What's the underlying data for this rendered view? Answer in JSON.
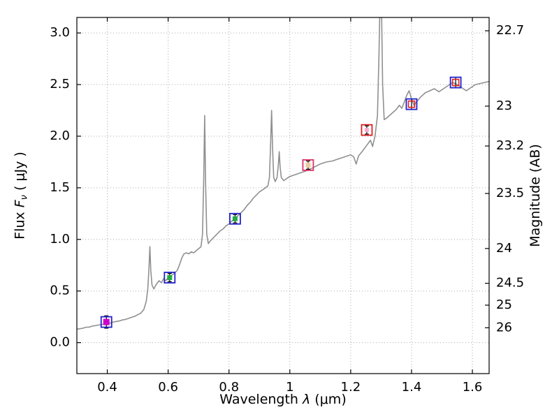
{
  "figure": {
    "xlabel": {
      "pre": "Wavelength  ",
      "sym": "λ",
      "post": " (μm)"
    },
    "ylabel_left": {
      "pre": "Flux  ",
      "sym": "F",
      "sub": "ν",
      "post": "  ( μJy )"
    },
    "ylabel_right": "Magnitude (AB)"
  },
  "chart_data": {
    "type": "line",
    "title": "",
    "xlabel": "Wavelength λ (μm)",
    "ylabel_left": "Flux Fν ( μJy )",
    "ylabel_right": "Magnitude (AB)",
    "xlim": [
      0.3,
      1.655
    ],
    "ylim": [
      -0.3,
      3.15
    ],
    "grid": true,
    "grid_color": "#aaaaaa",
    "frame_color": "#000000",
    "x_ticks": [
      {
        "v": 0.4,
        "label": "0.4"
      },
      {
        "v": 0.6,
        "label": "0.6"
      },
      {
        "v": 0.8,
        "label": "0.8"
      },
      {
        "v": 1.0,
        "label": "1"
      },
      {
        "v": 1.2,
        "label": "1.2"
      },
      {
        "v": 1.4,
        "label": "1.4"
      },
      {
        "v": 1.6,
        "label": "1.6"
      }
    ],
    "y_ticks_left": [
      {
        "v": 0.0,
        "label": "0.0"
      },
      {
        "v": 0.5,
        "label": "0.5"
      },
      {
        "v": 1.0,
        "label": "1.0"
      },
      {
        "v": 1.5,
        "label": "1.5"
      },
      {
        "v": 2.0,
        "label": "2.0"
      },
      {
        "v": 2.5,
        "label": "2.5"
      },
      {
        "v": 3.0,
        "label": "3.0"
      }
    ],
    "y_ticks_right": [
      {
        "v": 3.021,
        "label": "22.7"
      },
      {
        "v": 2.291,
        "label": "23"
      },
      {
        "v": 1.905,
        "label": "23.2"
      },
      {
        "v": 1.445,
        "label": "23.5"
      },
      {
        "v": 0.912,
        "label": "24"
      },
      {
        "v": 0.575,
        "label": "24.5"
      },
      {
        "v": 0.363,
        "label": "25"
      },
      {
        "v": 0.144,
        "label": "26"
      }
    ],
    "spectrum": {
      "name": "model-spectrum",
      "color": "#909090",
      "width": 1.6,
      "points": [
        [
          0.3,
          0.13
        ],
        [
          0.31,
          0.135
        ],
        [
          0.32,
          0.14
        ],
        [
          0.33,
          0.15
        ],
        [
          0.34,
          0.15
        ],
        [
          0.35,
          0.16
        ],
        [
          0.36,
          0.165
        ],
        [
          0.37,
          0.17
        ],
        [
          0.38,
          0.175
        ],
        [
          0.39,
          0.18
        ],
        [
          0.4,
          0.185
        ],
        [
          0.41,
          0.19
        ],
        [
          0.42,
          0.2
        ],
        [
          0.43,
          0.205
        ],
        [
          0.44,
          0.21
        ],
        [
          0.45,
          0.22
        ],
        [
          0.46,
          0.225
        ],
        [
          0.47,
          0.235
        ],
        [
          0.48,
          0.245
        ],
        [
          0.49,
          0.255
        ],
        [
          0.5,
          0.27
        ],
        [
          0.51,
          0.285
        ],
        [
          0.52,
          0.32
        ],
        [
          0.528,
          0.4
        ],
        [
          0.533,
          0.52
        ],
        [
          0.537,
          0.72
        ],
        [
          0.54,
          0.93
        ],
        [
          0.543,
          0.7
        ],
        [
          0.547,
          0.56
        ],
        [
          0.553,
          0.52
        ],
        [
          0.56,
          0.56
        ],
        [
          0.57,
          0.6
        ],
        [
          0.578,
          0.58
        ],
        [
          0.585,
          0.62
        ],
        [
          0.592,
          0.6
        ],
        [
          0.6,
          0.63
        ],
        [
          0.61,
          0.65
        ],
        [
          0.62,
          0.67
        ],
        [
          0.63,
          0.7
        ],
        [
          0.638,
          0.76
        ],
        [
          0.645,
          0.82
        ],
        [
          0.652,
          0.86
        ],
        [
          0.66,
          0.87
        ],
        [
          0.668,
          0.86
        ],
        [
          0.676,
          0.88
        ],
        [
          0.684,
          0.87
        ],
        [
          0.692,
          0.89
        ],
        [
          0.7,
          0.91
        ],
        [
          0.708,
          0.93
        ],
        [
          0.713,
          1.05
        ],
        [
          0.717,
          1.6
        ],
        [
          0.72,
          2.2
        ],
        [
          0.723,
          1.55
        ],
        [
          0.727,
          1.05
        ],
        [
          0.732,
          0.96
        ],
        [
          0.74,
          0.99
        ],
        [
          0.75,
          1.02
        ],
        [
          0.76,
          1.05
        ],
        [
          0.77,
          1.08
        ],
        [
          0.78,
          1.1
        ],
        [
          0.79,
          1.13
        ],
        [
          0.8,
          1.15
        ],
        [
          0.81,
          1.18
        ],
        [
          0.82,
          1.2
        ],
        [
          0.83,
          1.23
        ],
        [
          0.84,
          1.26
        ],
        [
          0.85,
          1.29
        ],
        [
          0.86,
          1.33
        ],
        [
          0.87,
          1.36
        ],
        [
          0.88,
          1.4
        ],
        [
          0.89,
          1.43
        ],
        [
          0.9,
          1.46
        ],
        [
          0.91,
          1.48
        ],
        [
          0.92,
          1.5
        ],
        [
          0.928,
          1.52
        ],
        [
          0.933,
          1.6
        ],
        [
          0.937,
          1.95
        ],
        [
          0.94,
          2.25
        ],
        [
          0.943,
          1.9
        ],
        [
          0.947,
          1.6
        ],
        [
          0.952,
          1.56
        ],
        [
          0.958,
          1.6
        ],
        [
          0.962,
          1.72
        ],
        [
          0.965,
          1.85
        ],
        [
          0.968,
          1.7
        ],
        [
          0.972,
          1.6
        ],
        [
          0.98,
          1.57
        ],
        [
          0.99,
          1.59
        ],
        [
          1.0,
          1.61
        ],
        [
          1.02,
          1.63
        ],
        [
          1.04,
          1.65
        ],
        [
          1.06,
          1.67
        ],
        [
          1.08,
          1.7
        ],
        [
          1.1,
          1.73
        ],
        [
          1.12,
          1.75
        ],
        [
          1.14,
          1.76
        ],
        [
          1.16,
          1.78
        ],
        [
          1.18,
          1.8
        ],
        [
          1.2,
          1.82
        ],
        [
          1.21,
          1.8
        ],
        [
          1.218,
          1.73
        ],
        [
          1.226,
          1.81
        ],
        [
          1.24,
          1.86
        ],
        [
          1.255,
          1.92
        ],
        [
          1.265,
          1.96
        ],
        [
          1.272,
          1.9
        ],
        [
          1.28,
          2.0
        ],
        [
          1.288,
          2.2
        ],
        [
          1.293,
          2.8
        ],
        [
          1.297,
          3.4
        ],
        [
          1.301,
          3.3
        ],
        [
          1.305,
          2.5
        ],
        [
          1.31,
          2.16
        ],
        [
          1.32,
          2.18
        ],
        [
          1.335,
          2.22
        ],
        [
          1.35,
          2.26
        ],
        [
          1.36,
          2.3
        ],
        [
          1.368,
          2.27
        ],
        [
          1.376,
          2.33
        ],
        [
          1.385,
          2.4
        ],
        [
          1.392,
          2.44
        ],
        [
          1.4,
          2.36
        ],
        [
          1.408,
          2.3
        ],
        [
          1.416,
          2.33
        ],
        [
          1.43,
          2.38
        ],
        [
          1.445,
          2.42
        ],
        [
          1.46,
          2.44
        ],
        [
          1.475,
          2.46
        ],
        [
          1.49,
          2.43
        ],
        [
          1.505,
          2.46
        ],
        [
          1.52,
          2.49
        ],
        [
          1.535,
          2.52
        ],
        [
          1.55,
          2.5
        ],
        [
          1.565,
          2.47
        ],
        [
          1.58,
          2.44
        ],
        [
          1.595,
          2.47
        ],
        [
          1.61,
          2.5
        ],
        [
          1.625,
          2.51
        ],
        [
          1.64,
          2.52
        ],
        [
          1.655,
          2.53
        ]
      ]
    },
    "photometry": [
      {
        "x": 0.397,
        "y": 0.2,
        "err": 0.06,
        "outer": {
          "color": "#2222cc",
          "size": 15
        },
        "inner": {
          "color": "#cc00cc",
          "size": 9,
          "fill": true
        }
      },
      {
        "x": 0.605,
        "y": 0.63,
        "err": 0.04,
        "outer": {
          "color": "#2222cc",
          "size": 15
        },
        "inner": {
          "color": "#22aa44",
          "size": 7,
          "fill": true
        }
      },
      {
        "x": 0.82,
        "y": 1.2,
        "err": 0.04,
        "outer": {
          "color": "#2222cc",
          "size": 15
        },
        "inner": {
          "color": "#22aa44",
          "size": 7,
          "fill": true
        }
      },
      {
        "x": 1.06,
        "y": 1.72,
        "err": 0.04,
        "outer": {
          "color": "#dd3366",
          "size": 15
        },
        "inner": {
          "color": "#eec9a0",
          "size": 7,
          "fill": true
        }
      },
      {
        "x": 1.253,
        "y": 2.06,
        "err": 0.04,
        "outer": {
          "color": "#dd2222",
          "size": 15
        },
        "inner": {
          "color": "#ffaacc",
          "size": 6,
          "fill": true
        }
      },
      {
        "x": 1.4,
        "y": 2.31,
        "err": 0.05,
        "outer": {
          "color": "#2222cc",
          "size": 15
        },
        "inner": {
          "color": "#dd2222",
          "size": 9,
          "fill": false
        }
      },
      {
        "x": 1.545,
        "y": 2.52,
        "err": 0.05,
        "outer": {
          "color": "#2222cc",
          "size": 15
        },
        "inner": {
          "color": "#dd2222",
          "size": 9,
          "fill": false
        }
      }
    ]
  }
}
